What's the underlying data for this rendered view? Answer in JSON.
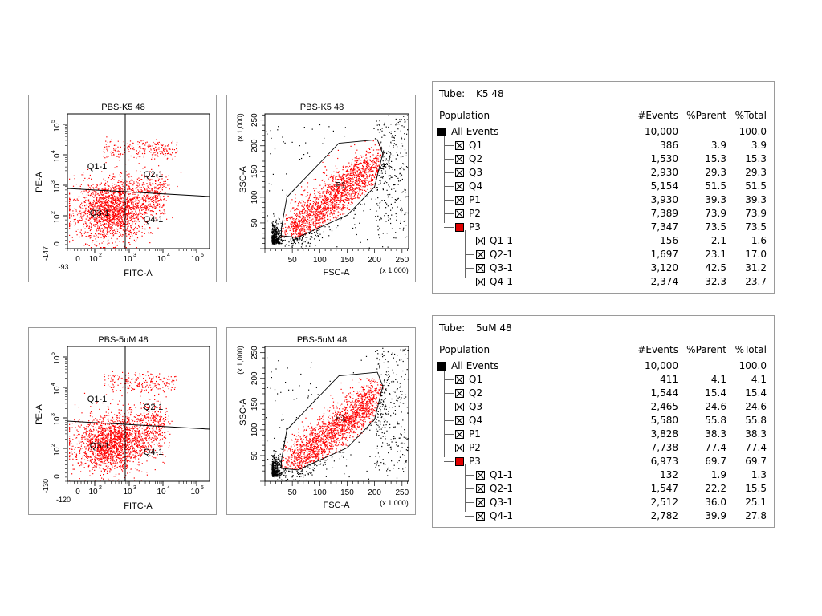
{
  "samples": [
    {
      "quad_plot": {
        "title": "PBS-K5 48",
        "xlabel": "FITC-A",
        "ylabel": "PE-A",
        "x_min_label": "-93",
        "y_min_label": "-147",
        "quadrant_labels": [
          "Q1-1",
          "Q2-1",
          "Q3-1",
          "Q4-1"
        ]
      },
      "scatter_plot": {
        "title": "PBS-K5 48",
        "xlabel": "FSC-A",
        "ylabel": "SSC-A",
        "x_multiplier": "(x 1,000)",
        "y_multiplier": "(x 1,000)",
        "gate_label": "P1"
      },
      "table": {
        "tube_label": "Tube:",
        "tube_name": "K5 48",
        "headers": [
          "Population",
          "#Events",
          "%Parent",
          "%Total"
        ],
        "rows": [
          {
            "name": "All Events",
            "events": "10,000",
            "parent": "",
            "total": "100.0",
            "level": 0,
            "marker": "black"
          },
          {
            "name": "Q1",
            "events": "386",
            "parent": "3.9",
            "total": "3.9",
            "level": 1,
            "marker": "x"
          },
          {
            "name": "Q2",
            "events": "1,530",
            "parent": "15.3",
            "total": "15.3",
            "level": 1,
            "marker": "x"
          },
          {
            "name": "Q3",
            "events": "2,930",
            "parent": "29.3",
            "total": "29.3",
            "level": 1,
            "marker": "x"
          },
          {
            "name": "Q4",
            "events": "5,154",
            "parent": "51.5",
            "total": "51.5",
            "level": 1,
            "marker": "x"
          },
          {
            "name": "P1",
            "events": "3,930",
            "parent": "39.3",
            "total": "39.3",
            "level": 1,
            "marker": "x"
          },
          {
            "name": "P2",
            "events": "7,389",
            "parent": "73.9",
            "total": "73.9",
            "level": 1,
            "marker": "x"
          },
          {
            "name": "P3",
            "events": "7,347",
            "parent": "73.5",
            "total": "73.5",
            "level": 1,
            "marker": "red"
          },
          {
            "name": "Q1-1",
            "events": "156",
            "parent": "2.1",
            "total": "1.6",
            "level": 2,
            "marker": "x"
          },
          {
            "name": "Q2-1",
            "events": "1,697",
            "parent": "23.1",
            "total": "17.0",
            "level": 2,
            "marker": "x"
          },
          {
            "name": "Q3-1",
            "events": "3,120",
            "parent": "42.5",
            "total": "31.2",
            "level": 2,
            "marker": "x"
          },
          {
            "name": "Q4-1",
            "events": "2,374",
            "parent": "32.3",
            "total": "23.7",
            "level": 2,
            "marker": "x"
          }
        ]
      }
    },
    {
      "quad_plot": {
        "title": "PBS-5uM 48",
        "xlabel": "FITC-A",
        "ylabel": "PE-A",
        "x_min_label": "-120",
        "y_min_label": "-130",
        "quadrant_labels": [
          "Q1-1",
          "Q2-1",
          "Q3-1",
          "Q4-1"
        ]
      },
      "scatter_plot": {
        "title": "PBS-5uM 48",
        "xlabel": "FSC-A",
        "ylabel": "SSC-A",
        "x_multiplier": "(x 1,000)",
        "y_multiplier": "(x 1,000)",
        "gate_label": "P1"
      },
      "table": {
        "tube_label": "Tube:",
        "tube_name": "5uM 48",
        "headers": [
          "Population",
          "#Events",
          "%Parent",
          "%Total"
        ],
        "rows": [
          {
            "name": "All Events",
            "events": "10,000",
            "parent": "",
            "total": "100.0",
            "level": 0,
            "marker": "black"
          },
          {
            "name": "Q1",
            "events": "411",
            "parent": "4.1",
            "total": "4.1",
            "level": 1,
            "marker": "x"
          },
          {
            "name": "Q2",
            "events": "1,544",
            "parent": "15.4",
            "total": "15.4",
            "level": 1,
            "marker": "x"
          },
          {
            "name": "Q3",
            "events": "2,465",
            "parent": "24.6",
            "total": "24.6",
            "level": 1,
            "marker": "x"
          },
          {
            "name": "Q4",
            "events": "5,580",
            "parent": "55.8",
            "total": "55.8",
            "level": 1,
            "marker": "x"
          },
          {
            "name": "P1",
            "events": "3,828",
            "parent": "38.3",
            "total": "38.3",
            "level": 1,
            "marker": "x"
          },
          {
            "name": "P2",
            "events": "7,738",
            "parent": "77.4",
            "total": "77.4",
            "level": 1,
            "marker": "x"
          },
          {
            "name": "P3",
            "events": "6,973",
            "parent": "69.7",
            "total": "69.7",
            "level": 1,
            "marker": "red"
          },
          {
            "name": "Q1-1",
            "events": "132",
            "parent": "1.9",
            "total": "1.3",
            "level": 2,
            "marker": "x"
          },
          {
            "name": "Q2-1",
            "events": "1,547",
            "parent": "22.2",
            "total": "15.5",
            "level": 2,
            "marker": "x"
          },
          {
            "name": "Q3-1",
            "events": "2,512",
            "parent": "36.0",
            "total": "25.1",
            "level": 2,
            "marker": "x"
          },
          {
            "name": "Q4-1",
            "events": "2,782",
            "parent": "39.9",
            "total": "27.8",
            "level": 2,
            "marker": "x"
          }
        ]
      }
    }
  ],
  "chart_data": [
    {
      "type": "scatter",
      "title": "PBS-K5 48",
      "xlabel": "FITC-A",
      "ylabel": "PE-A",
      "x_scale": "biexponential",
      "y_scale": "biexponential",
      "x_ticks": [
        "0",
        "10^2",
        "10^3",
        "10^4",
        "10^5"
      ],
      "y_ticks": [
        "0",
        "10^2",
        "10^3",
        "10^4",
        "10^5"
      ],
      "x_min": -93,
      "y_min": -147,
      "quadrants": [
        "Q1-1",
        "Q2-1",
        "Q3-1",
        "Q4-1"
      ],
      "point_color": "#ff0000"
    },
    {
      "type": "scatter",
      "title": "PBS-K5 48",
      "xlabel": "FSC-A",
      "ylabel": "SSC-A",
      "x_ticks": [
        50,
        100,
        150,
        200,
        250
      ],
      "y_ticks": [
        50,
        100,
        150,
        200,
        250
      ],
      "xlim": [
        0,
        262
      ],
      "ylim": [
        0,
        262
      ],
      "units": "(x 1,000)",
      "gate": "P1",
      "gated_color": "#ff0000",
      "ungated_color": "#000000"
    },
    {
      "type": "scatter",
      "title": "PBS-5uM 48",
      "xlabel": "FITC-A",
      "ylabel": "PE-A",
      "x_scale": "biexponential",
      "y_scale": "biexponential",
      "x_ticks": [
        "0",
        "10^2",
        "10^3",
        "10^4",
        "10^5"
      ],
      "y_ticks": [
        "0",
        "10^2",
        "10^3",
        "10^4",
        "10^5"
      ],
      "x_min": -120,
      "y_min": -130,
      "quadrants": [
        "Q1-1",
        "Q2-1",
        "Q3-1",
        "Q4-1"
      ],
      "point_color": "#ff0000"
    },
    {
      "type": "scatter",
      "title": "PBS-5uM 48",
      "xlabel": "FSC-A",
      "ylabel": "SSC-A",
      "x_ticks": [
        50,
        100,
        150,
        200,
        250
      ],
      "y_ticks": [
        50,
        100,
        150,
        200,
        250
      ],
      "xlim": [
        0,
        262
      ],
      "ylim": [
        0,
        262
      ],
      "units": "(x 1,000)",
      "gate": "P1",
      "gated_color": "#ff0000",
      "ungated_color": "#000000"
    }
  ]
}
